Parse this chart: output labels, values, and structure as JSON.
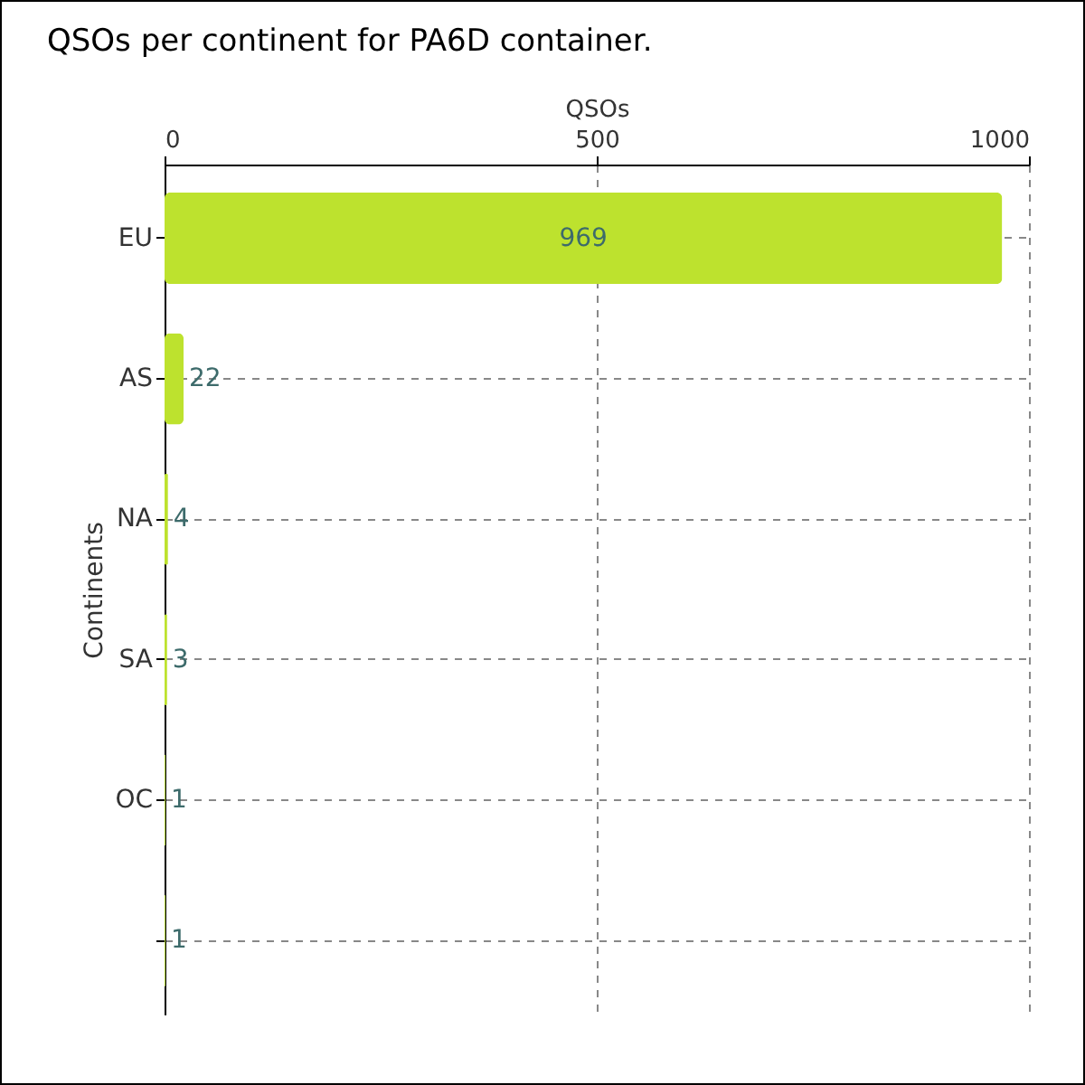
{
  "chart_data": {
    "type": "bar",
    "orientation": "horizontal",
    "title": "QSOs per continent for PA6D container.",
    "xlabel": "QSOs",
    "ylabel": "Continents",
    "categories": [
      "EU",
      "AS",
      "NA",
      "SA",
      "OC",
      null
    ],
    "values": [
      969,
      22,
      4,
      3,
      1,
      1
    ],
    "color": "#bde22e",
    "xlim": [
      0,
      1000
    ],
    "xticks": [
      0,
      500,
      1000
    ],
    "grid": true,
    "data_labels": true
  }
}
